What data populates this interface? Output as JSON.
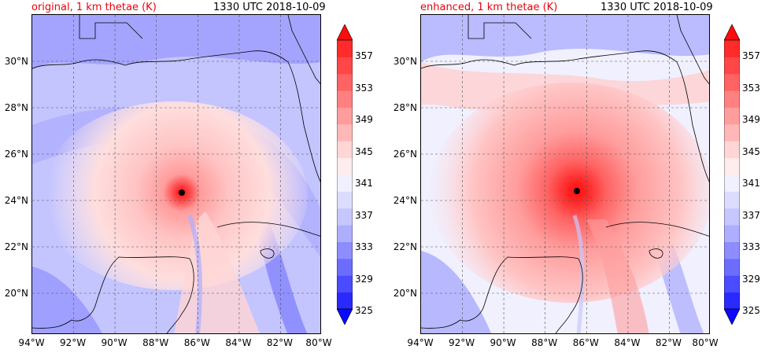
{
  "panels": [
    {
      "title_left": "original, 1 km thetae (K)",
      "title_right": "1330 UTC 2018-10-09",
      "center_marker": {
        "lon": -86.8,
        "lat": 24.4
      }
    },
    {
      "title_left": "enhanced, 1 km thetae (K)",
      "title_right": "1330 UTC 2018-10-09",
      "center_marker": {
        "lon": -86.4,
        "lat": 24.5
      }
    }
  ],
  "map": {
    "lon_range": [
      -94,
      -80
    ],
    "lat_range": [
      18.2,
      32.0
    ],
    "lat_ticks": [
      "30°N",
      "28°N",
      "26°N",
      "24°N",
      "22°N",
      "20°N"
    ],
    "lat_values": [
      30,
      28,
      26,
      24,
      22,
      20
    ],
    "lon_ticks": [
      "94°W",
      "92°W",
      "90°W",
      "88°W",
      "86°W",
      "84°W",
      "82°W",
      "80°W"
    ],
    "lon_values": [
      -94,
      -92,
      -90,
      -88,
      -86,
      -84,
      -82,
      -80
    ],
    "gridlines": true
  },
  "colorbar": {
    "variable": "thetae",
    "units": "K",
    "tick_labels": [
      "357",
      "353",
      "349",
      "345",
      "341",
      "337",
      "333",
      "329",
      "325"
    ],
    "levels": [
      325,
      327,
      329,
      331,
      333,
      335,
      337,
      339,
      341,
      343,
      345,
      347,
      349,
      351,
      353,
      355,
      357,
      359
    ],
    "colors": [
      "#0a0aff",
      "#2a2aff",
      "#4b4bff",
      "#6c6cff",
      "#8d8dff",
      "#aeaeff",
      "#c7c7ff",
      "#dcdcff",
      "#f0f0ff",
      "#ffecec",
      "#ffd5d5",
      "#ffb8b8",
      "#ff9c9c",
      "#ff8080",
      "#ff6363",
      "#ff4747",
      "#ff2a2a",
      "#ff0d0d"
    ],
    "extend": "both"
  }
}
